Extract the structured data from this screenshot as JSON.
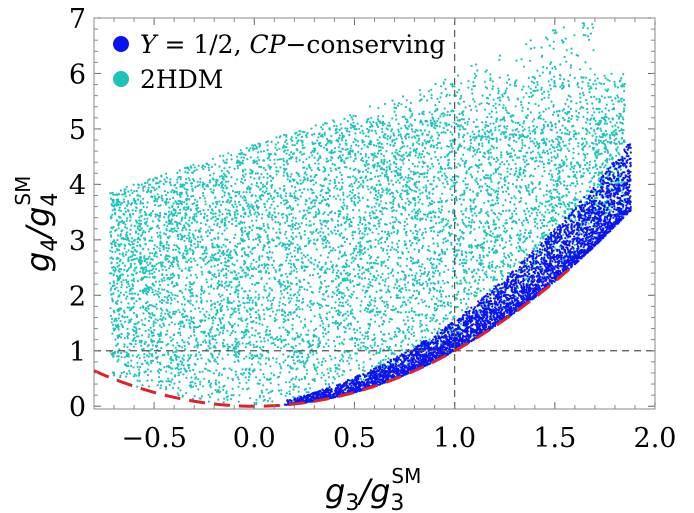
{
  "chart_data": {
    "type": "scatter",
    "xlabel": {
      "base": "g",
      "sub": "3",
      "over": "/g",
      "sub2": "3",
      "sup": "SM"
    },
    "ylabel": {
      "base": "g",
      "sub": "4",
      "over": "/g",
      "sub2": "4",
      "sup": "SM"
    },
    "xlim": [
      -0.8,
      2.0
    ],
    "ylim": [
      -0.05,
      7.0
    ],
    "x_ticks": [
      -0.5,
      0.0,
      0.5,
      1.0,
      1.5,
      2.0
    ],
    "x_tick_labels": [
      "−0.5",
      "0.0",
      "0.5",
      "1.0",
      "1.5",
      "2.0"
    ],
    "y_ticks": [
      0,
      1,
      2,
      3,
      4,
      5,
      6,
      7
    ],
    "y_tick_labels": [
      "0",
      "1",
      "2",
      "3",
      "4",
      "5",
      "6",
      "7"
    ],
    "reference_lines": {
      "x": 1.0,
      "y": 1.0,
      "style": "dashed",
      "color": "#555555"
    },
    "boundary_curve": {
      "expression": "y = x^2",
      "x_range": [
        -0.8,
        1.6
      ],
      "color": "#e0202a",
      "style": "dashed"
    },
    "legend": {
      "placement": "top-left",
      "entries": [
        {
          "color": "#0a14f0",
          "parts": {
            "var": "Y",
            "rest": " = 1/2, ",
            "cp": "CP",
            "tail": "−conserving"
          }
        },
        {
          "color": "#1cc4b8",
          "label": "2HDM"
        }
      ]
    },
    "series": [
      {
        "name": "2HDM",
        "color": "#1cc4b8",
        "density_description": "dense cloud bounded below by y = x^2; upper envelope rising from about 4 at x=-0.6 to about 7 at x=1.7",
        "x_range": [
          -0.72,
          1.85
        ],
        "y_range": [
          0.0,
          6.9
        ]
      },
      {
        "name": "Y = 1/2, CP-conserving",
        "color": "#0a14f0",
        "density_description": "narrow band just above y = x^2 from x=0.15 to x=1.85, up to about 4.3",
        "x_range": [
          0.15,
          1.88
        ],
        "y_range": [
          0.02,
          4.3
        ]
      }
    ]
  }
}
